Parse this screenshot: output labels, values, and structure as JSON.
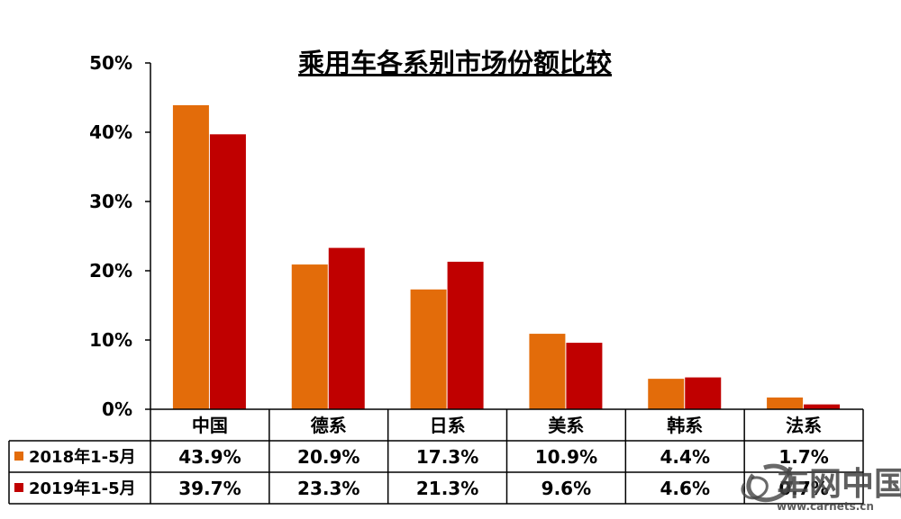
{
  "chart_data": {
    "type": "bar",
    "title": "乘用车各系别市场份额比较",
    "categories": [
      "中国",
      "德系",
      "日系",
      "美系",
      "韩系",
      "法系"
    ],
    "series": [
      {
        "name": "2018年1-5月",
        "values": [
          43.9,
          20.9,
          17.3,
          10.9,
          4.4,
          1.7
        ],
        "labels": [
          "43.9%",
          "20.9%",
          "17.3%",
          "10.9%",
          "4.4%",
          "1.7%"
        ],
        "color": "#E36C0A"
      },
      {
        "name": "2019年1-5月",
        "values": [
          39.7,
          23.3,
          21.3,
          9.6,
          4.6,
          0.7
        ],
        "labels": [
          "39.7%",
          "23.3%",
          "21.3%",
          "9.6%",
          "4.6%",
          "0.7%"
        ],
        "color": "#C00000"
      }
    ],
    "yticks": [
      "0%",
      "10%",
      "20%",
      "30%",
      "40%",
      "50%"
    ],
    "ylim": [
      0,
      50
    ],
    "grid": false,
    "legend": "data-table"
  },
  "watermark": {
    "text": "车网中国",
    "url": "www.carnets.cn"
  }
}
